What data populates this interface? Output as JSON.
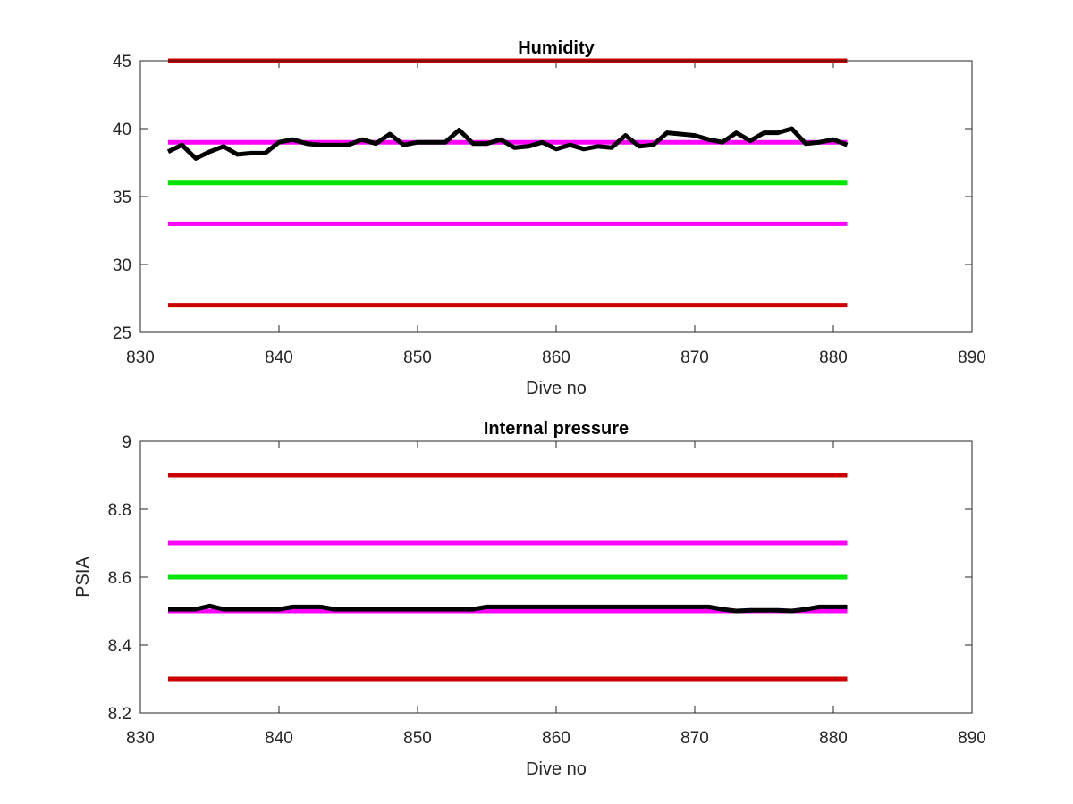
{
  "chart_data": [
    {
      "type": "line",
      "title": "Humidity",
      "xlabel": "Dive no",
      "ylabel": "",
      "xlim": [
        830,
        890
      ],
      "ylim": [
        25,
        45
      ],
      "xticks": [
        830,
        840,
        850,
        860,
        870,
        880,
        890
      ],
      "yticks": [
        25,
        30,
        35,
        40,
        45
      ],
      "grid": false,
      "threshold_lines": [
        {
          "y": 45,
          "x": [
            832,
            881
          ],
          "color": "#cc0000"
        },
        {
          "y": 39,
          "x": [
            832,
            881
          ],
          "color": "#ff00ff"
        },
        {
          "y": 36,
          "x": [
            832,
            881
          ],
          "color": "#00e600"
        },
        {
          "y": 33,
          "x": [
            832,
            881
          ],
          "color": "#ff00ff"
        },
        {
          "y": 27,
          "x": [
            832,
            881
          ],
          "color": "#cc0000"
        }
      ],
      "series": [
        {
          "color": "#000000",
          "x": [
            832,
            833,
            834,
            835,
            836,
            837,
            838,
            839,
            840,
            841,
            842,
            843,
            844,
            845,
            846,
            847,
            848,
            849,
            850,
            851,
            852,
            853,
            854,
            855,
            856,
            857,
            858,
            859,
            860,
            861,
            862,
            863,
            864,
            865,
            866,
            867,
            868,
            869,
            870,
            871,
            872,
            873,
            874,
            875,
            876,
            877,
            878,
            879,
            880,
            881
          ],
          "y": [
            38.3,
            38.8,
            37.8,
            38.3,
            38.7,
            38.1,
            38.2,
            38.2,
            39.0,
            39.2,
            38.9,
            38.8,
            38.8,
            38.8,
            39.2,
            38.9,
            39.6,
            38.8,
            39.0,
            39.0,
            39.0,
            39.9,
            38.9,
            38.9,
            39.2,
            38.6,
            38.7,
            39.0,
            38.5,
            38.8,
            38.5,
            38.7,
            38.6,
            39.5,
            38.7,
            38.8,
            39.7,
            39.6,
            39.5,
            39.2,
            39.0,
            39.7,
            39.1,
            39.7,
            39.7,
            40.0,
            38.9,
            39.0,
            39.2,
            38.8
          ]
        }
      ]
    },
    {
      "type": "line",
      "title": "Internal pressure",
      "xlabel": "Dive no",
      "ylabel": "PSIA",
      "xlim": [
        830,
        890
      ],
      "ylim": [
        8.2,
        9.0
      ],
      "xticks": [
        830,
        840,
        850,
        860,
        870,
        880,
        890
      ],
      "yticks": [
        8.2,
        8.4,
        8.6,
        8.8,
        9.0
      ],
      "ytick_labels": [
        "8.2",
        "8.4",
        "8.6",
        "8.8",
        "9"
      ],
      "grid": false,
      "threshold_lines": [
        {
          "y": 8.9,
          "x": [
            832,
            881
          ],
          "color": "#cc0000"
        },
        {
          "y": 8.7,
          "x": [
            832,
            881
          ],
          "color": "#ff00ff"
        },
        {
          "y": 8.6,
          "x": [
            832,
            881
          ],
          "color": "#00e600"
        },
        {
          "y": 8.3,
          "x": [
            832,
            881
          ],
          "color": "#cc0000"
        },
        {
          "y": 8.5,
          "x": [
            832,
            881
          ],
          "color": "#ff00ff"
        }
      ],
      "series": [
        {
          "color": "#000000",
          "x": [
            832,
            833,
            834,
            835,
            836,
            837,
            838,
            839,
            840,
            841,
            842,
            843,
            844,
            845,
            846,
            847,
            848,
            849,
            850,
            851,
            852,
            853,
            854,
            855,
            856,
            857,
            858,
            859,
            860,
            861,
            862,
            863,
            864,
            865,
            866,
            867,
            868,
            869,
            870,
            871,
            872,
            873,
            874,
            875,
            876,
            877,
            878,
            879,
            880,
            881
          ],
          "y": [
            8.505,
            8.505,
            8.505,
            8.515,
            8.505,
            8.505,
            8.505,
            8.505,
            8.505,
            8.512,
            8.512,
            8.512,
            8.505,
            8.505,
            8.505,
            8.505,
            8.505,
            8.505,
            8.505,
            8.505,
            8.505,
            8.505,
            8.505,
            8.512,
            8.512,
            8.512,
            8.512,
            8.512,
            8.512,
            8.512,
            8.512,
            8.512,
            8.512,
            8.512,
            8.512,
            8.512,
            8.512,
            8.512,
            8.512,
            8.512,
            8.505,
            8.5,
            8.502,
            8.502,
            8.502,
            8.5,
            8.505,
            8.512,
            8.512,
            8.512
          ]
        }
      ]
    }
  ]
}
